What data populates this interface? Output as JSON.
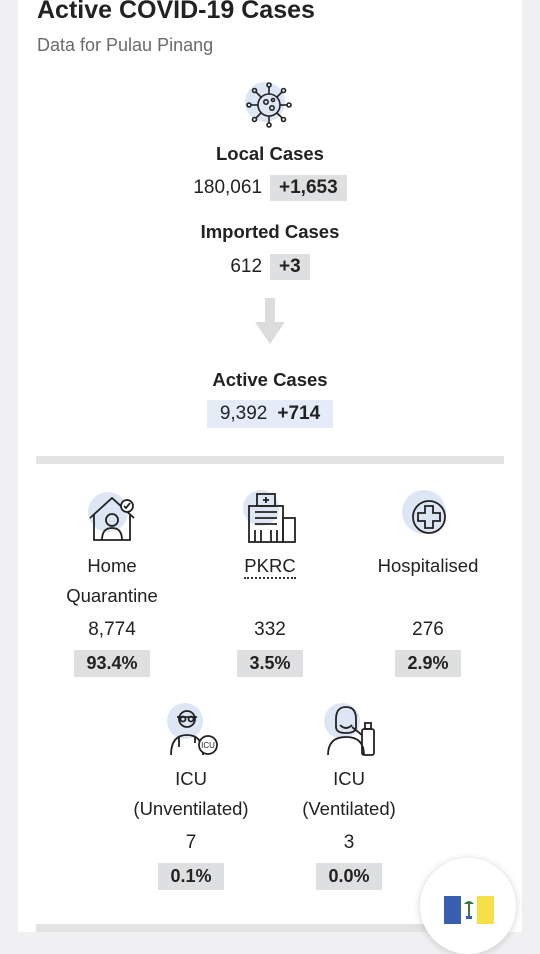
{
  "header": {
    "title": "Active COVID-19 Cases",
    "subtitle": "Data for Pulau Pinang"
  },
  "summary": {
    "local_label": "Local Cases",
    "local_value": "180,061",
    "local_delta": "+1,653",
    "imported_label": "Imported Cases",
    "imported_value": "612",
    "imported_delta": "+3",
    "active_label": "Active Cases",
    "active_value": "9,392",
    "active_delta": "+714"
  },
  "breakdown": [
    {
      "label_line1": "Home",
      "label_line2": "Quarantine",
      "value": "8,774",
      "percent": "93.4%",
      "icon": "home-quarantine-icon"
    },
    {
      "label_line1": "PKRC",
      "label_line2": "",
      "value": "332",
      "percent": "3.5%",
      "icon": "building-icon"
    },
    {
      "label_line1": "Hospitalised",
      "label_line2": "",
      "value": "276",
      "percent": "2.9%",
      "icon": "medical-cross-icon"
    },
    {
      "label_line1": "ICU",
      "label_line2": "(Unventilated)",
      "value": "7",
      "percent": "0.1%",
      "icon": "icu-doctor-icon"
    },
    {
      "label_line1": "ICU",
      "label_line2": "(Ventilated)",
      "value": "3",
      "percent": "0.0%",
      "icon": "ventilator-icon"
    }
  ],
  "colors": {
    "delta_bg": "#dedfe1",
    "active_bg": "#e3ecf8",
    "icon_circle": "#dde6f4"
  }
}
